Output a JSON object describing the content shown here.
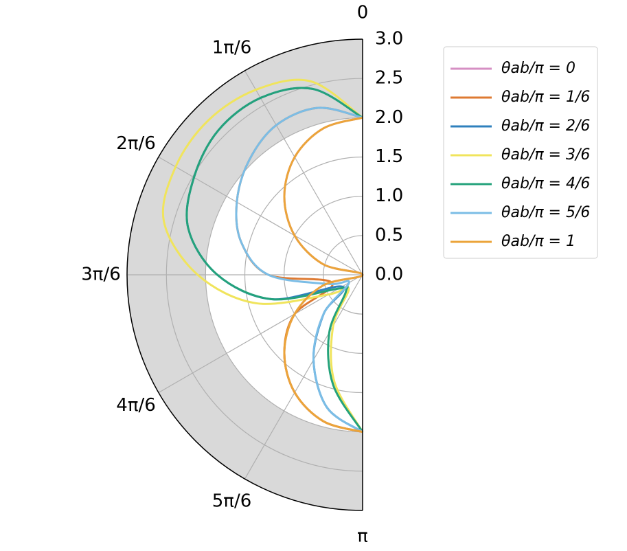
{
  "chart_data": {
    "type": "polar-line",
    "x": [
      0,
      0.2618,
      0.5236,
      0.7854,
      1.0472,
      1.309,
      1.5708,
      1.8326,
      2.0944,
      2.3562,
      2.618,
      2.8798,
      3.1416
    ],
    "xlim": [
      0,
      3.1416
    ],
    "xticks": [
      0,
      {
        "value": 0.5236,
        "label": "1π/6"
      },
      {
        "value": 1.0472,
        "label": "2π/6"
      },
      {
        "value": 1.5708,
        "label": "3π/6"
      },
      {
        "value": 2.0944,
        "label": "4π/6"
      },
      {
        "value": 2.618,
        "label": "5π/6"
      },
      {
        "value": 3.1416,
        "label": "π"
      }
    ],
    "ylim": [
      0,
      3
    ],
    "yticks": [
      {
        "value": 0,
        "label": "0.0"
      },
      0.5,
      {
        "value": 1,
        "label": "1.0"
      },
      1.5,
      {
        "value": 2,
        "label": "2.0"
      },
      2.5,
      {
        "value": 3,
        "label": "3.0"
      }
    ],
    "grid": true,
    "shaded_band": [
      2,
      3
    ],
    "shaded_color": "#d9d9d9",
    "legend": "outside-right",
    "series": [
      {
        "name": "θab/π = 0",
        "color": "#d68fc3",
        "values": [
          2,
          1.93,
          1.73,
          1.41,
          1.0,
          0.52,
          0,
          0.52,
          1.0,
          1.41,
          1.73,
          1.93,
          2
        ]
      },
      {
        "name": "θab/π = 1/6",
        "color": "#de7a32",
        "values": [
          2,
          2.2,
          2.2,
          2.05,
          1.85,
          1.6,
          1.2,
          0.4,
          1.0,
          1.41,
          1.73,
          1.93,
          2
        ]
      },
      {
        "name": "θab/π = 2/6",
        "color": "#2f80bd",
        "values": [
          2,
          2.45,
          2.6,
          2.6,
          2.48,
          2.3,
          1.85,
          1.2,
          0.3,
          0.7,
          1.25,
          1.75,
          2
        ]
      },
      {
        "name": "θab/π = 3/6",
        "color": "#f0e45c",
        "values": [
          2,
          2.55,
          2.72,
          2.78,
          2.75,
          2.62,
          2.1,
          1.4,
          0.5,
          0.25,
          0.75,
          1.4,
          2
        ]
      },
      {
        "name": "θab/π = 4/6",
        "color": "#24a27b",
        "values": [
          2,
          2.45,
          2.6,
          2.6,
          2.48,
          2.3,
          1.85,
          1.2,
          0.35,
          0.3,
          0.85,
          1.45,
          2
        ]
      },
      {
        "name": "θab/π = 5/6",
        "color": "#7bbde6",
        "values": [
          2,
          2.2,
          2.2,
          2.05,
          1.85,
          1.6,
          1.2,
          0.45,
          0.2,
          0.7,
          1.25,
          1.75,
          2
        ]
      },
      {
        "name": "θab/π = 1",
        "color": "#eba43a",
        "values": [
          2,
          1.93,
          1.73,
          1.41,
          1.0,
          0.52,
          0,
          0.52,
          1.0,
          1.41,
          1.73,
          1.93,
          2
        ]
      }
    ]
  }
}
